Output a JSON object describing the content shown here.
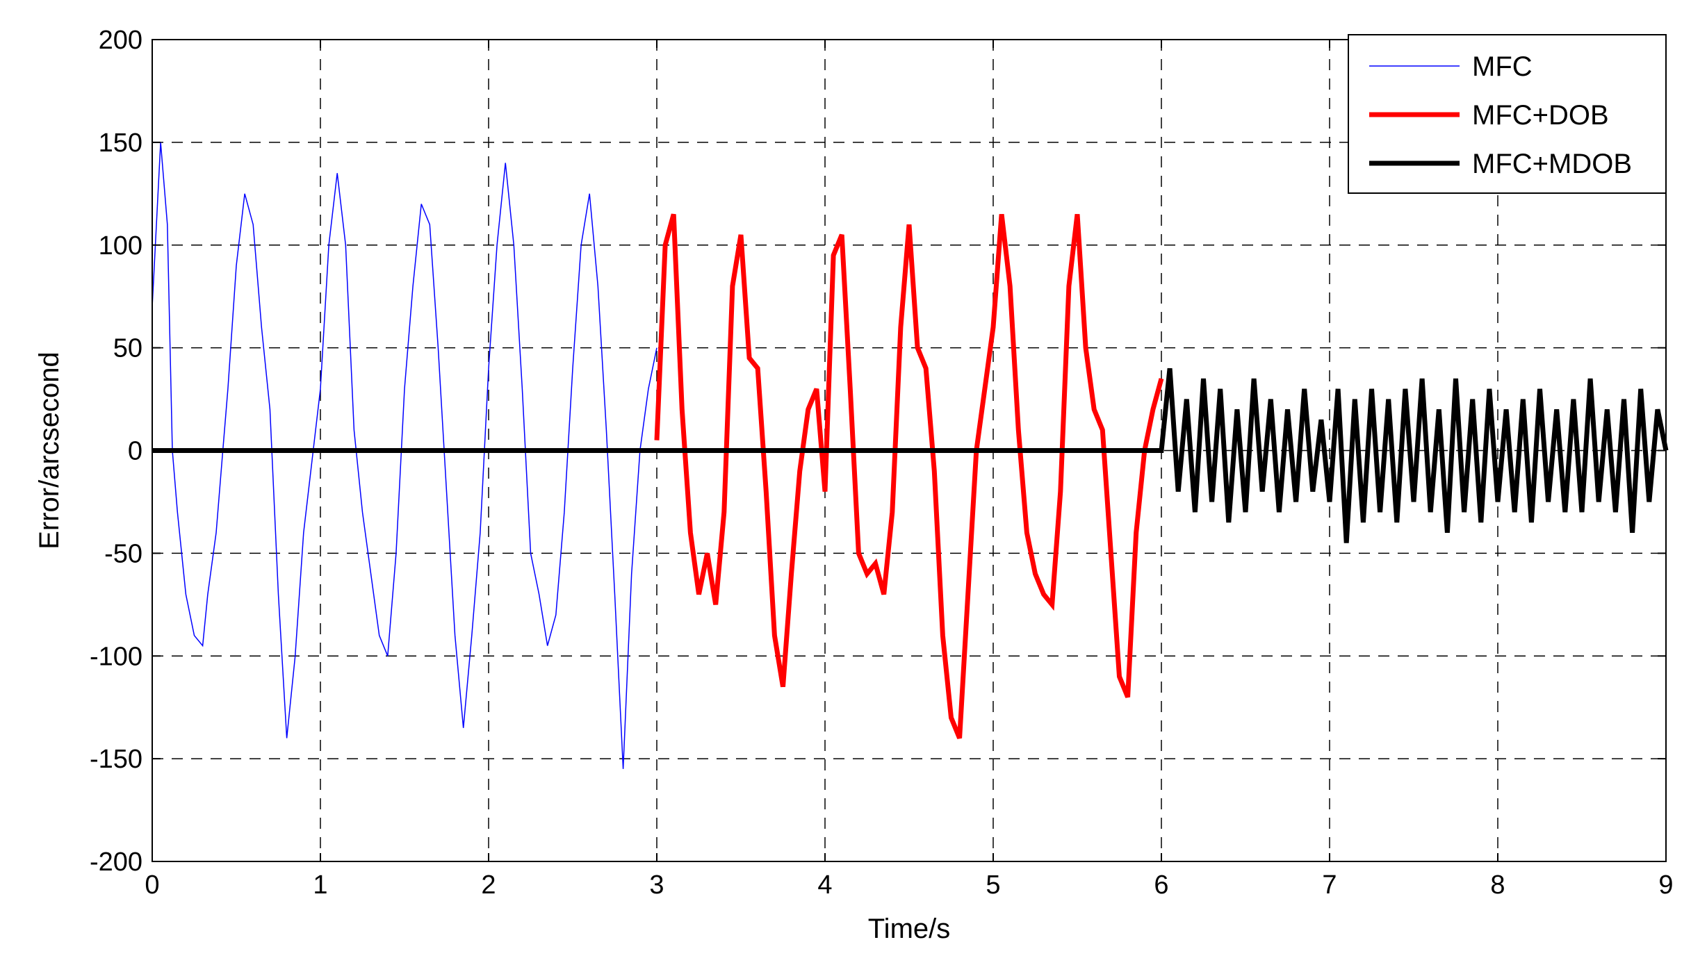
{
  "chart_data": {
    "type": "line",
    "title": "",
    "xlabel": "Time/s",
    "ylabel": "Error/arcsecond",
    "xlim": [
      0,
      9
    ],
    "ylim": [
      -200,
      200
    ],
    "xticks": [
      0,
      1,
      2,
      3,
      4,
      5,
      6,
      7,
      8,
      9
    ],
    "xtick_labels": [
      "0",
      "1",
      "2",
      "3",
      "4",
      "5",
      "6",
      "7",
      "8",
      "9"
    ],
    "yticks": [
      200,
      150,
      100,
      50,
      0,
      -50,
      -100,
      -150,
      -200
    ],
    "ytick_labels": [
      "200",
      "150",
      "100",
      "50",
      "0",
      "-50",
      "-100",
      "-150",
      "-200"
    ],
    "grid": true,
    "grid_style": "dashed",
    "legend_position": "top-right",
    "legend": [
      "MFC",
      "MFC+DOB",
      "MFC+MDOB"
    ],
    "series": [
      {
        "name": "MFC",
        "color": "#0000ff",
        "line_width": "thin",
        "x": [
          0,
          0.05,
          0.09,
          0.12,
          0.15,
          0.2,
          0.25,
          0.3,
          0.33,
          0.38,
          0.42,
          0.45,
          0.5,
          0.55,
          0.6,
          0.65,
          0.7,
          0.75,
          0.8,
          0.85,
          0.9,
          1.0,
          1.05,
          1.1,
          1.15,
          1.2,
          1.25,
          1.3,
          1.35,
          1.4,
          1.45,
          1.5,
          1.55,
          1.6,
          1.65,
          1.7,
          1.75,
          1.8,
          1.85,
          1.9,
          1.95,
          2.0,
          2.05,
          2.1,
          2.15,
          2.2,
          2.25,
          2.3,
          2.35,
          2.4,
          2.45,
          2.5,
          2.55,
          2.6,
          2.65,
          2.7,
          2.75,
          2.8,
          2.85,
          2.9,
          2.95,
          3.0
        ],
        "y": [
          70,
          150,
          110,
          0,
          -30,
          -70,
          -90,
          -95,
          -70,
          -40,
          0,
          30,
          90,
          125,
          110,
          60,
          20,
          -70,
          -140,
          -100,
          -40,
          30,
          100,
          135,
          100,
          10,
          -30,
          -60,
          -90,
          -100,
          -50,
          30,
          80,
          120,
          110,
          50,
          -20,
          -90,
          -135,
          -90,
          -40,
          40,
          100,
          140,
          100,
          30,
          -50,
          -70,
          -95,
          -80,
          -30,
          40,
          100,
          125,
          80,
          10,
          -70,
          -155,
          -60,
          0,
          30,
          50
        ]
      },
      {
        "name": "MFC+DOB",
        "color": "#ff0000",
        "line_width": "thick",
        "x": [
          3.0,
          3.05,
          3.1,
          3.15,
          3.2,
          3.25,
          3.3,
          3.35,
          3.4,
          3.45,
          3.5,
          3.55,
          3.6,
          3.65,
          3.7,
          3.75,
          3.8,
          3.85,
          3.9,
          3.95,
          4.0,
          4.05,
          4.1,
          4.15,
          4.2,
          4.25,
          4.3,
          4.35,
          4.4,
          4.45,
          4.5,
          4.55,
          4.6,
          4.65,
          4.7,
          4.75,
          4.8,
          4.85,
          4.9,
          4.95,
          5.0,
          5.05,
          5.1,
          5.15,
          5.2,
          5.25,
          5.3,
          5.35,
          5.4,
          5.45,
          5.5,
          5.55,
          5.6,
          5.65,
          5.7,
          5.75,
          5.8,
          5.85,
          5.9,
          5.95,
          6.0
        ],
        "y": [
          5,
          100,
          115,
          20,
          -40,
          -70,
          -50,
          -75,
          -30,
          80,
          105,
          45,
          40,
          -20,
          -90,
          -115,
          -60,
          -10,
          20,
          30,
          -20,
          95,
          105,
          30,
          -50,
          -60,
          -55,
          -70,
          -30,
          60,
          110,
          50,
          40,
          -10,
          -90,
          -130,
          -140,
          -70,
          0,
          30,
          60,
          115,
          80,
          10,
          -40,
          -60,
          -70,
          -75,
          -20,
          80,
          115,
          50,
          20,
          10,
          -50,
          -110,
          -120,
          -40,
          0,
          20,
          35
        ]
      },
      {
        "name": "MFC+MDOB",
        "color": "#000000",
        "line_width": "thick",
        "x": [
          0,
          6.0,
          6.05,
          6.1,
          6.15,
          6.2,
          6.25,
          6.3,
          6.35,
          6.4,
          6.45,
          6.5,
          6.55,
          6.6,
          6.65,
          6.7,
          6.75,
          6.8,
          6.85,
          6.9,
          6.95,
          7.0,
          7.05,
          7.1,
          7.15,
          7.2,
          7.25,
          7.3,
          7.35,
          7.4,
          7.45,
          7.5,
          7.55,
          7.6,
          7.65,
          7.7,
          7.75,
          7.8,
          7.85,
          7.9,
          7.95,
          8.0,
          8.05,
          8.1,
          8.15,
          8.2,
          8.25,
          8.3,
          8.35,
          8.4,
          8.45,
          8.5,
          8.55,
          8.6,
          8.65,
          8.7,
          8.75,
          8.8,
          8.85,
          8.9,
          8.95,
          9.0
        ],
        "y": [
          0,
          0,
          40,
          -20,
          25,
          -30,
          35,
          -25,
          30,
          -35,
          20,
          -30,
          35,
          -20,
          25,
          -30,
          20,
          -25,
          30,
          -20,
          15,
          -25,
          30,
          -45,
          25,
          -35,
          30,
          -30,
          25,
          -35,
          30,
          -25,
          35,
          -30,
          20,
          -40,
          35,
          -30,
          25,
          -35,
          30,
          -25,
          20,
          -30,
          25,
          -35,
          30,
          -25,
          20,
          -30,
          25,
          -30,
          35,
          -25,
          20,
          -30,
          25,
          -40,
          30,
          -25,
          20,
          0
        ]
      }
    ]
  }
}
